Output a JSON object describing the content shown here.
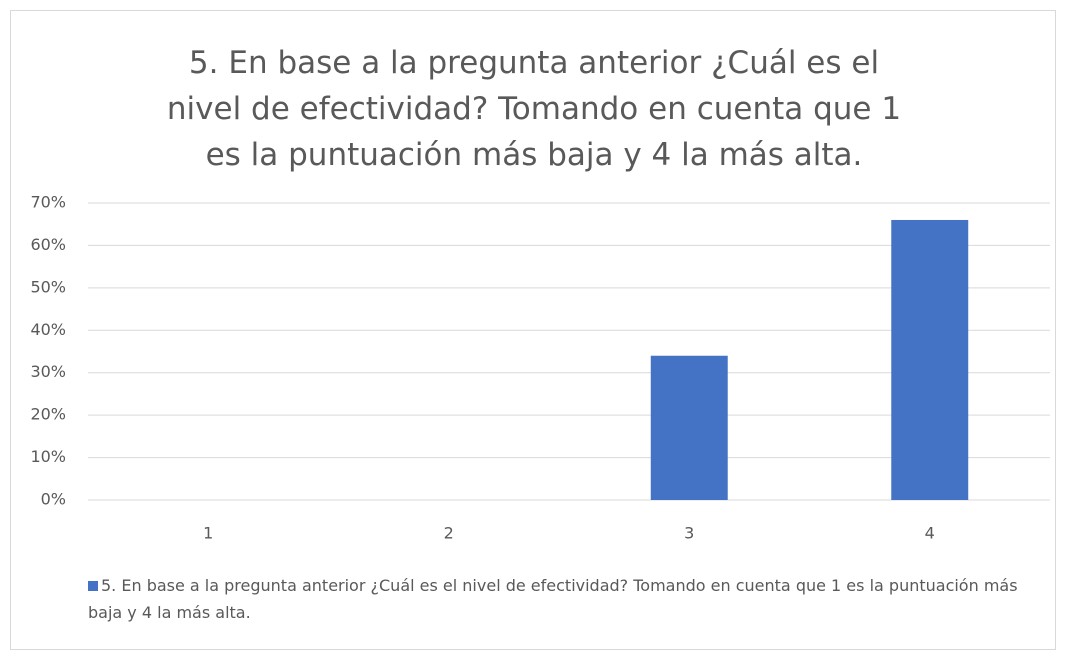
{
  "chart_data": {
    "type": "bar",
    "title": "5. En base a la pregunta anterior ¿Cuál es el nivel de efectividad? Tomando en cuenta que 1 es la puntuación más baja y 4 la más alta.",
    "categories": [
      "1",
      "2",
      "3",
      "4"
    ],
    "series": [
      {
        "name": "5. En base a la pregunta anterior ¿Cuál es el nivel de efectividad? Tomando en cuenta que 1 es la puntuación más baja y 4 la más alta.",
        "color": "#4472c4",
        "values": [
          0,
          0,
          34,
          66
        ]
      }
    ],
    "ylim": [
      0,
      70
    ],
    "yticks": [
      {
        "value": 0,
        "label": "0%"
      },
      {
        "value": 10,
        "label": "10%"
      },
      {
        "value": 20,
        "label": "20%"
      },
      {
        "value": 30,
        "label": "30%"
      },
      {
        "value": 40,
        "label": "40%"
      },
      {
        "value": 50,
        "label": "50%"
      },
      {
        "value": 60,
        "label": "60%"
      },
      {
        "value": 70,
        "label": "70%"
      }
    ],
    "grid": true,
    "legend": "bottom"
  }
}
